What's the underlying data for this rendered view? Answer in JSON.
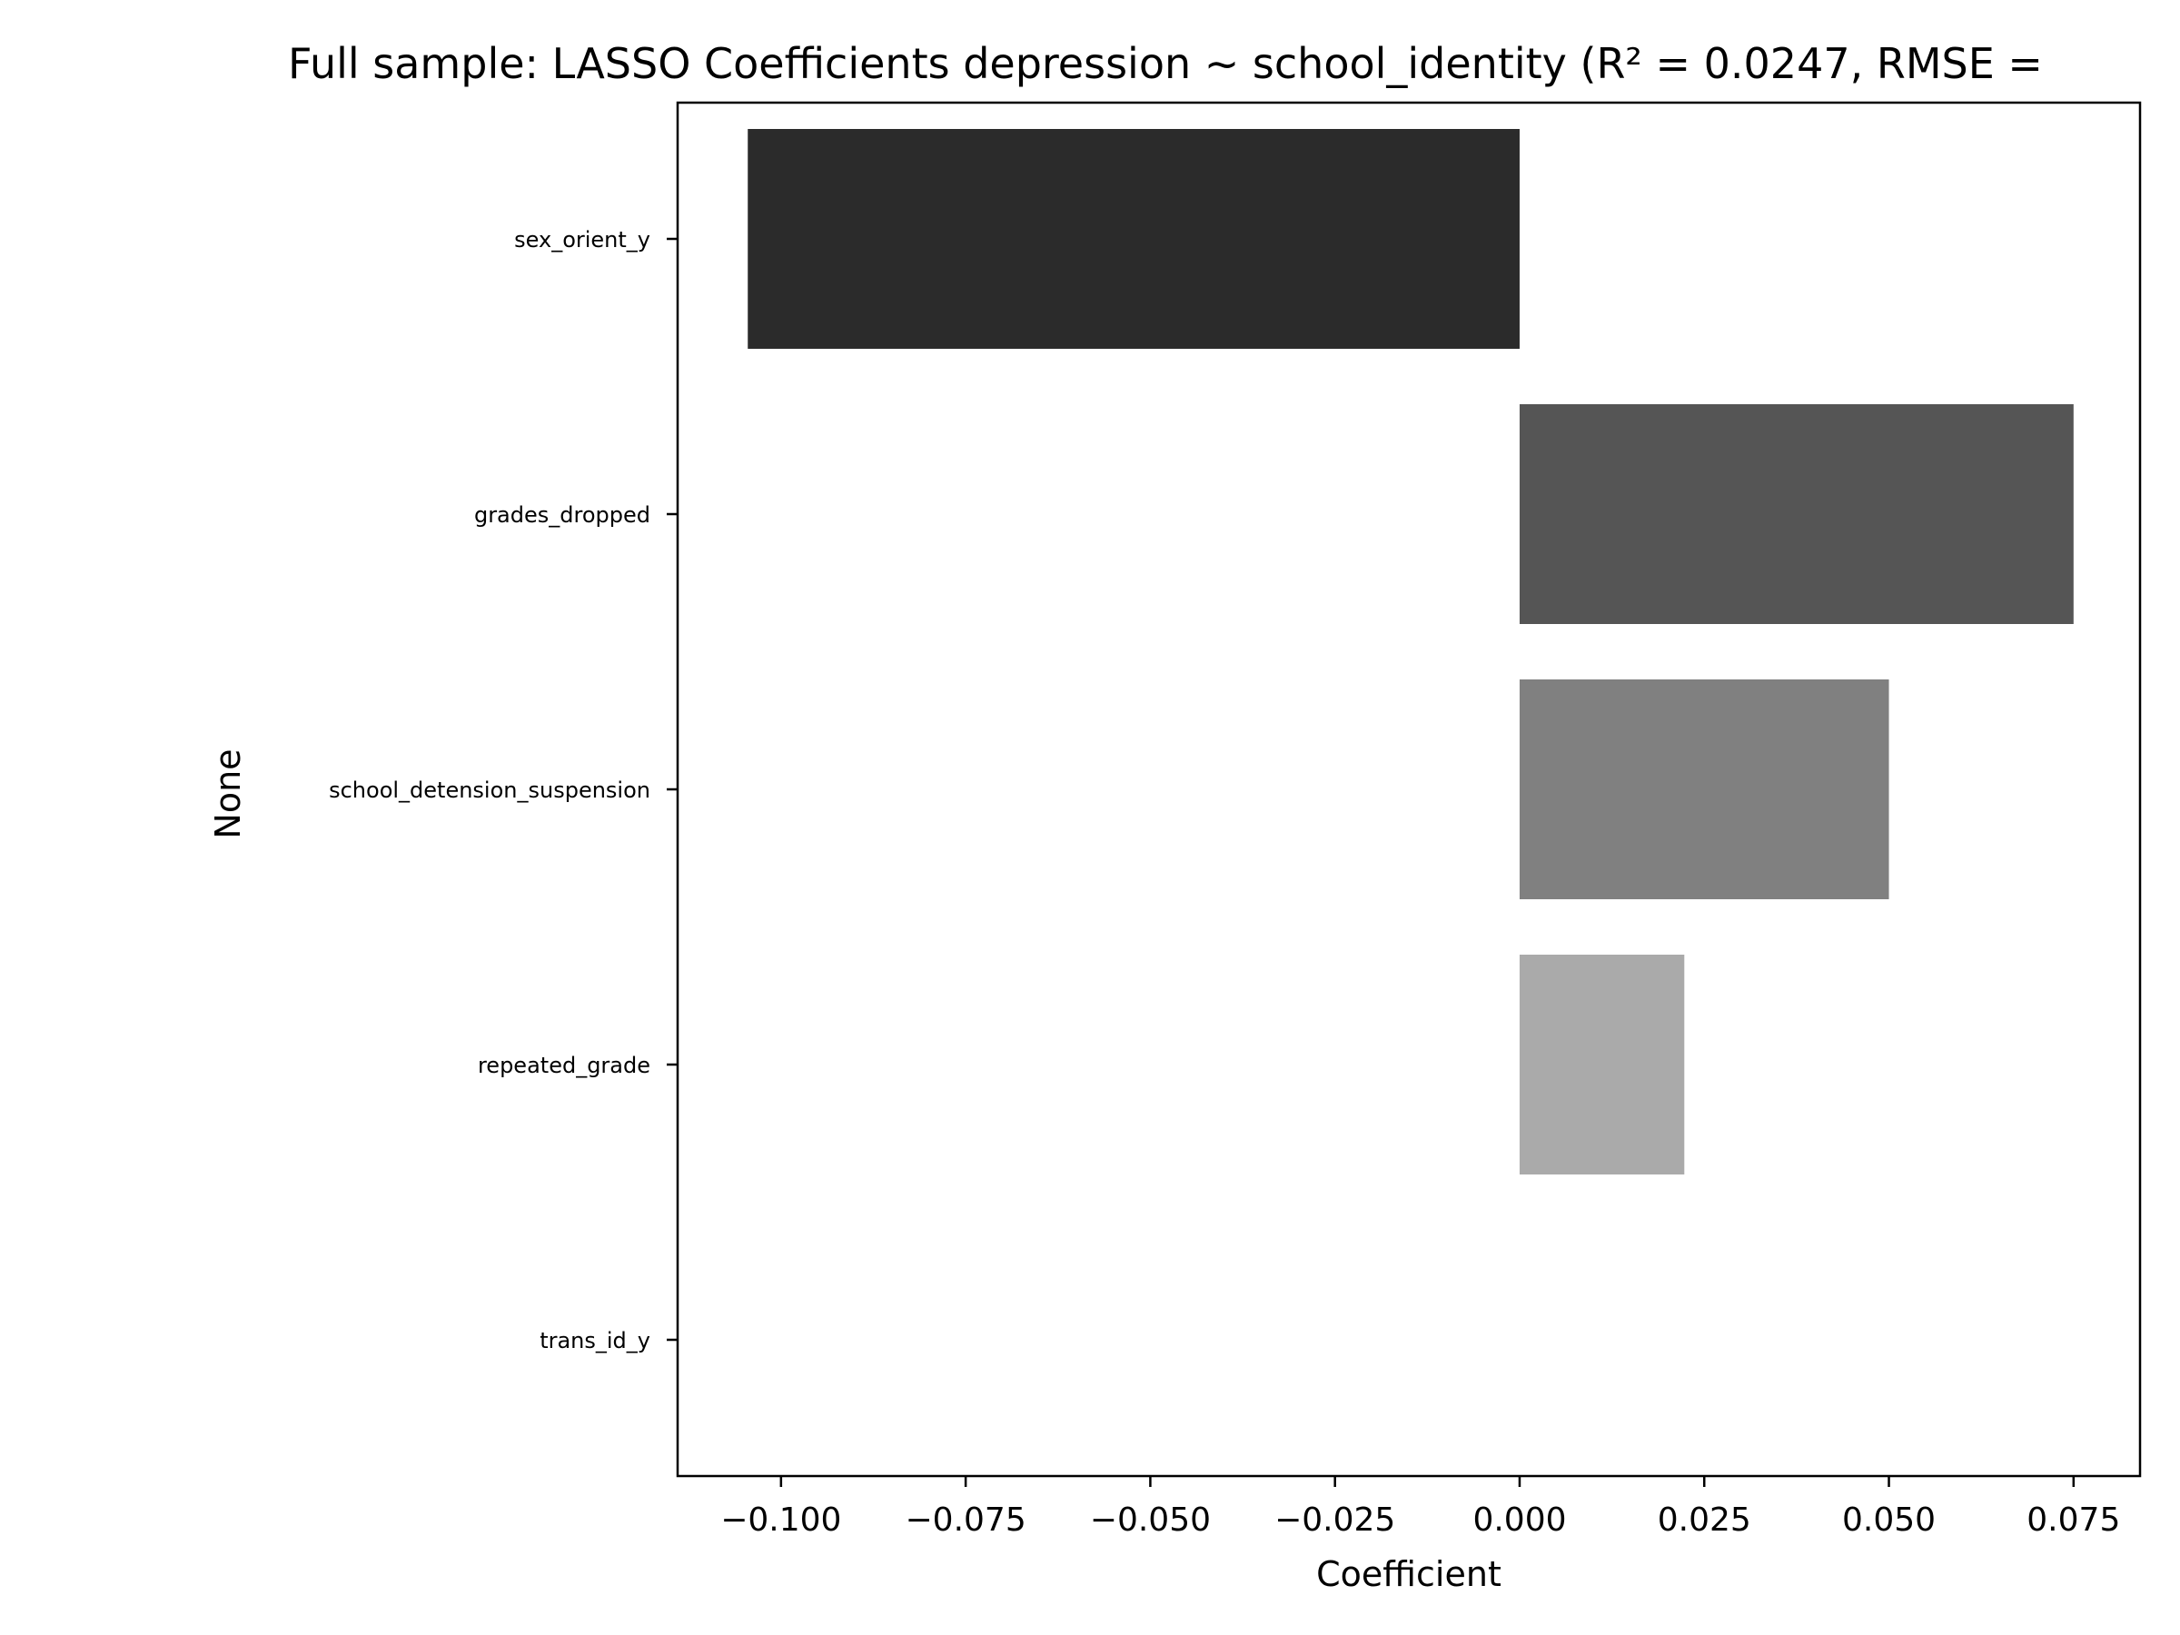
{
  "chart_data": {
    "type": "bar",
    "orientation": "horizontal",
    "title": "Full sample: LASSO Coefficients depression ~ school_identity (R² = 0.0247, RMSE =",
    "xlabel": "Coefficient",
    "ylabel": "None",
    "categories": [
      "sex_orient_y",
      "grades_dropped",
      "school_detension_suspension",
      "repeated_grade",
      "trans_id_y"
    ],
    "values": [
      -0.1045,
      0.075,
      0.05,
      0.0223,
      0.0
    ],
    "bar_colors": [
      "#2b2b2b",
      "#555555",
      "#808080",
      "#aaaaaa",
      "#d4d4d4"
    ],
    "xlim": [
      -0.114,
      0.084
    ],
    "xticks": [
      -0.1,
      -0.075,
      -0.05,
      -0.025,
      0.0,
      0.025,
      0.05,
      0.075
    ],
    "xtick_labels": [
      "−0.100",
      "−0.075",
      "−0.050",
      "−0.025",
      "0.000",
      "0.025",
      "0.050",
      "0.075"
    ],
    "grid": false,
    "legend": "none"
  }
}
